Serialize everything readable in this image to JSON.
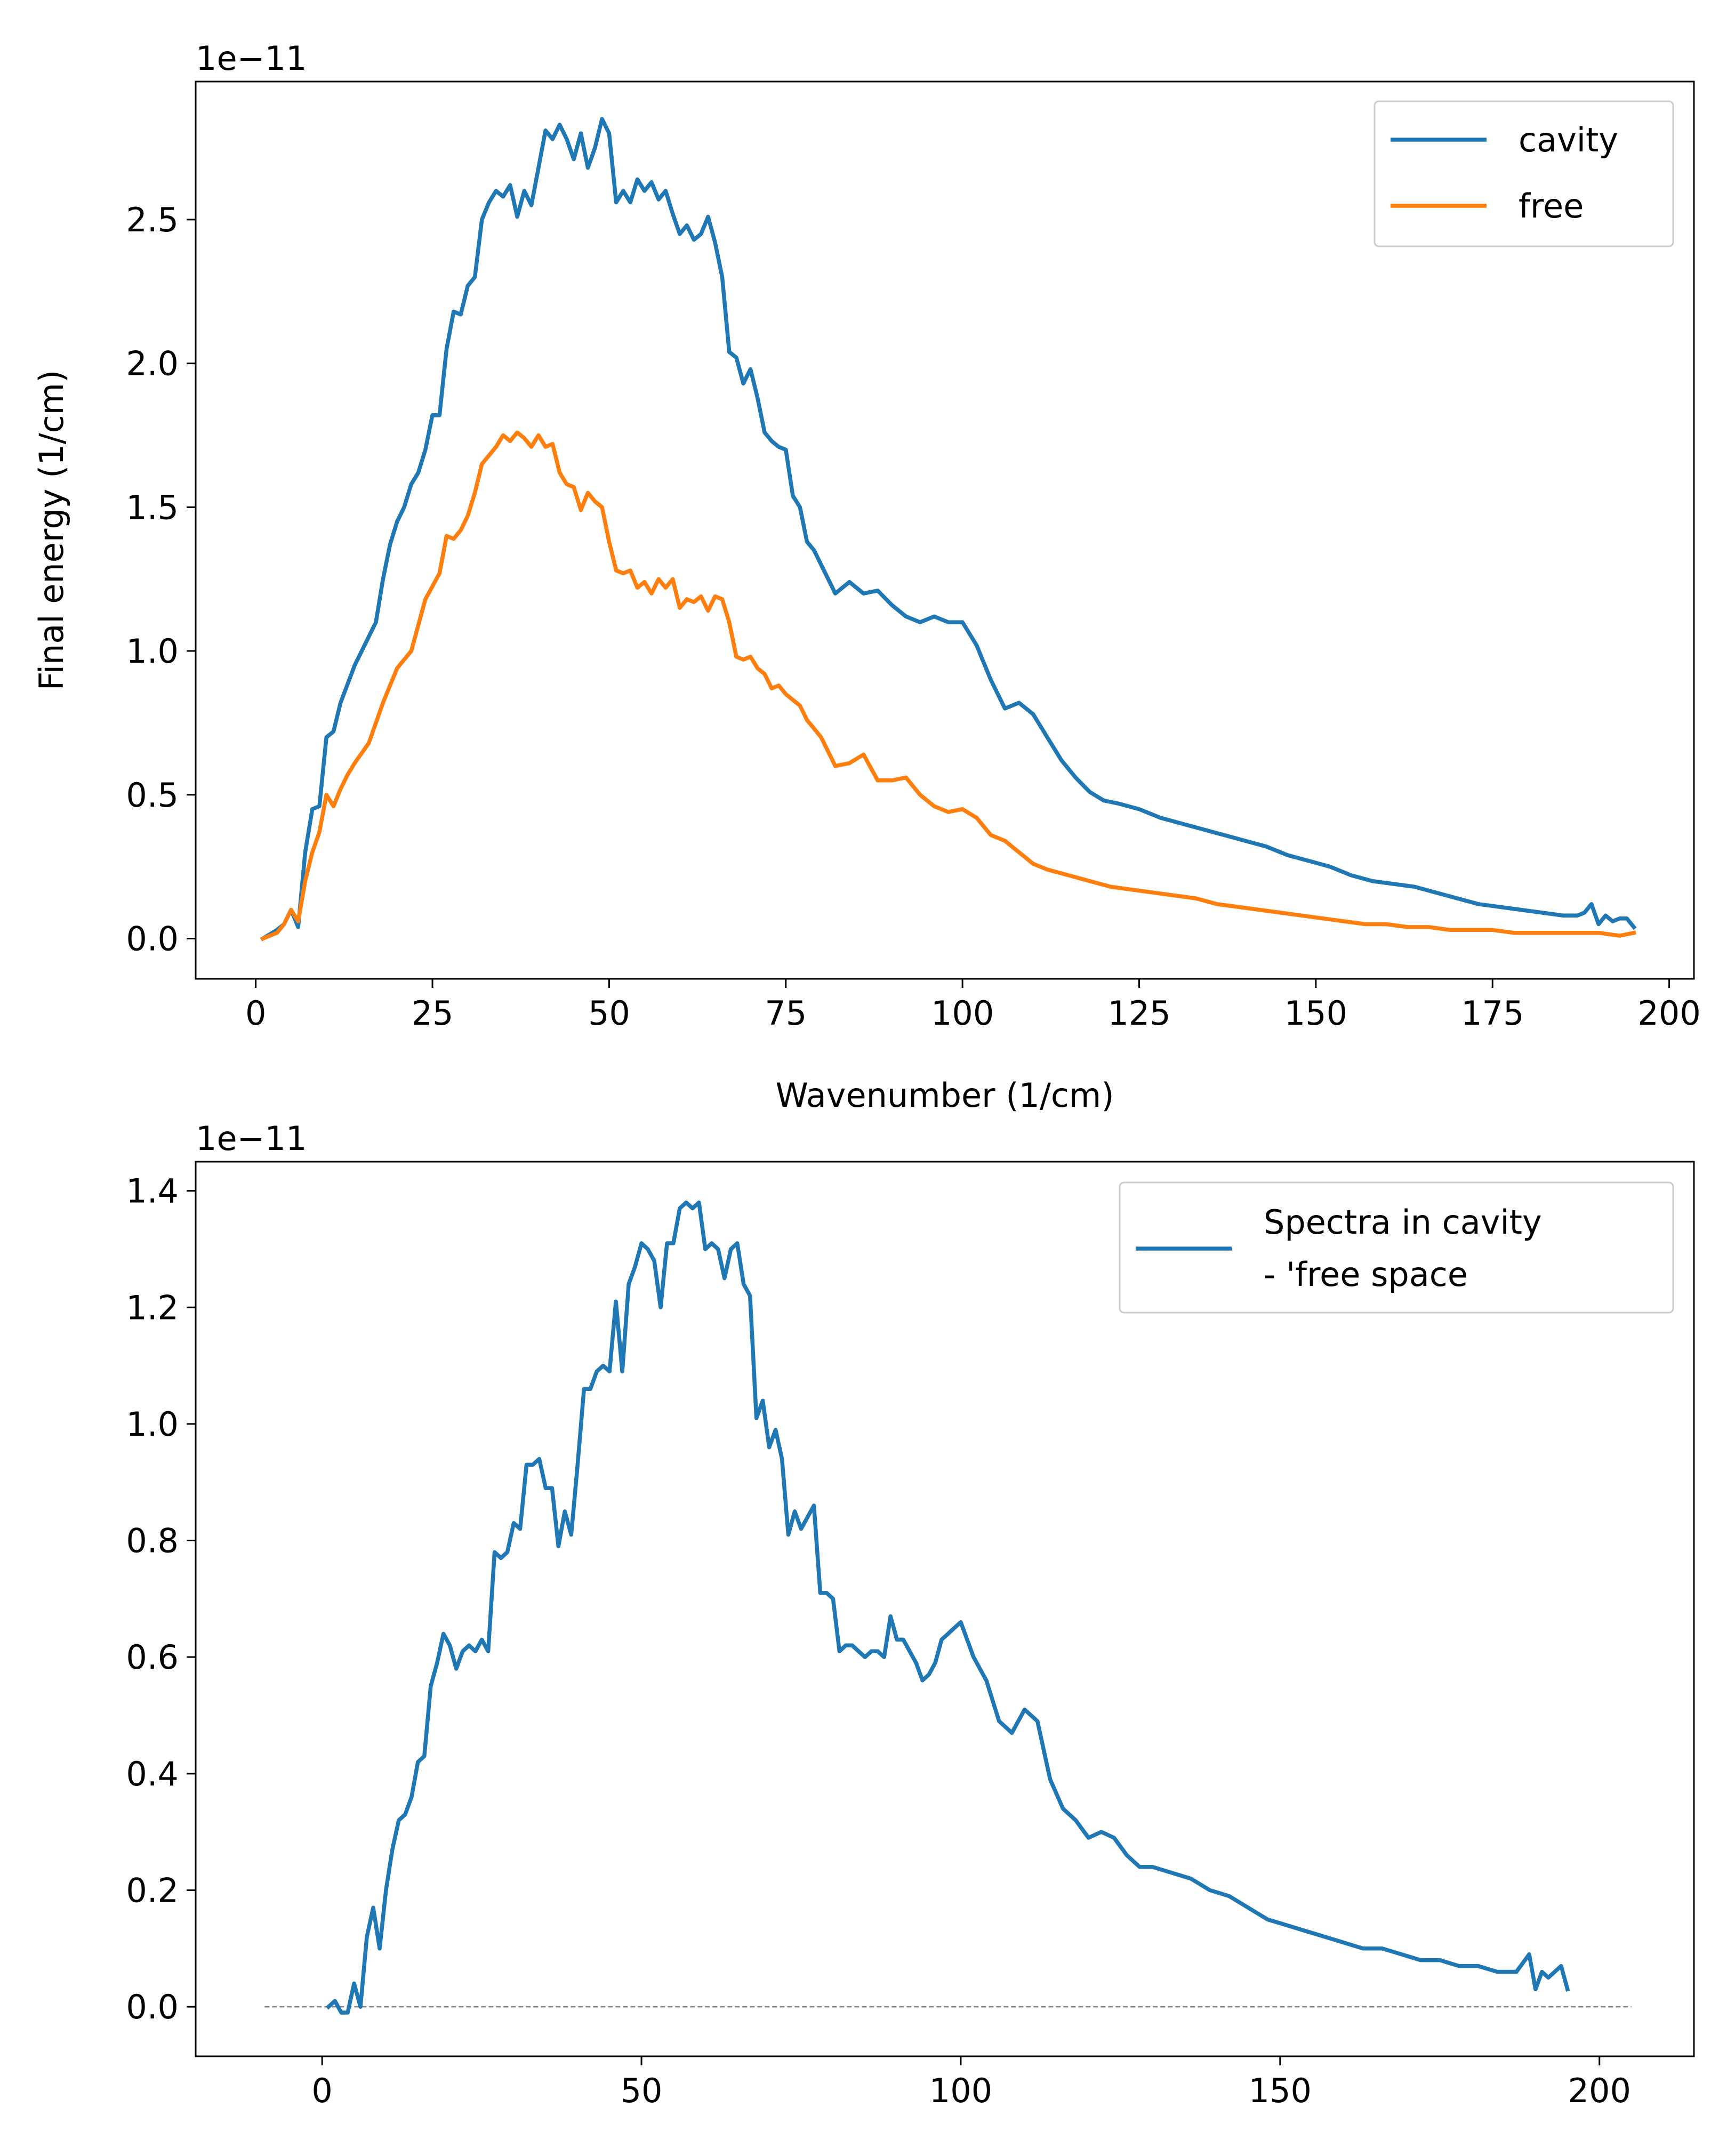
{
  "colors": {
    "cavity": "#1f77b4",
    "free": "#ff7f0e",
    "diff": "#1f77b4",
    "zeroline": "#808080"
  },
  "chart_data": [
    {
      "type": "line",
      "title": "",
      "xlabel": "Wavenumber (1/cm)",
      "ylabel": "Final energy (1/cm)",
      "offset_text": "1e−11",
      "xlim": [
        -8.5,
        203.5
      ],
      "ylim": [
        -0.14,
        2.98
      ],
      "xticks": [
        0,
        25,
        50,
        75,
        100,
        125,
        150,
        175,
        200
      ],
      "yticks": [
        0.0,
        0.5,
        1.0,
        1.5,
        2.0,
        2.5
      ],
      "xtick_labels": [
        "0",
        "25",
        "50",
        "75",
        "100",
        "125",
        "150",
        "175",
        "200"
      ],
      "ytick_labels": [
        "0.0",
        "0.5",
        "1.0",
        "1.5",
        "2.0",
        "2.5"
      ],
      "legend_position": "upper right",
      "grid": false,
      "series": [
        {
          "name": "cavity",
          "color": "#1f77b4",
          "x": [
            1,
            3,
            4,
            5,
            6,
            7,
            8,
            9,
            10,
            11,
            12,
            14,
            16,
            17,
            18,
            19,
            20,
            21,
            22,
            23,
            24,
            25,
            26,
            27,
            28,
            29,
            30,
            31,
            32,
            33,
            34,
            35,
            36,
            37,
            38,
            39,
            40,
            41,
            42,
            43,
            44,
            45,
            46,
            47,
            48,
            49,
            50,
            51,
            52,
            53,
            54,
            55,
            56,
            57,
            58,
            59,
            60,
            61,
            62,
            63,
            64,
            65,
            66,
            67,
            68,
            69,
            70,
            71,
            72,
            73,
            74,
            75,
            76,
            77,
            78,
            79,
            80,
            82,
            84,
            86,
            88,
            90,
            92,
            94,
            96,
            98,
            100,
            102,
            104,
            106,
            108,
            110,
            112,
            114,
            116,
            118,
            120,
            122,
            125,
            128,
            131,
            134,
            137,
            140,
            143,
            146,
            149,
            152,
            155,
            158,
            161,
            164,
            167,
            170,
            173,
            176,
            179,
            182,
            185,
            186,
            187,
            188,
            189,
            190,
            191,
            192,
            193,
            194,
            195
          ],
          "y": [
            0.0,
            0.03,
            0.05,
            0.1,
            0.04,
            0.3,
            0.45,
            0.46,
            0.7,
            0.72,
            0.82,
            0.95,
            1.05,
            1.1,
            1.25,
            1.37,
            1.45,
            1.5,
            1.58,
            1.62,
            1.7,
            1.82,
            1.82,
            2.05,
            2.18,
            2.17,
            2.27,
            2.3,
            2.5,
            2.56,
            2.6,
            2.58,
            2.62,
            2.51,
            2.6,
            2.55,
            2.68,
            2.81,
            2.78,
            2.83,
            2.78,
            2.71,
            2.8,
            2.68,
            2.75,
            2.85,
            2.8,
            2.56,
            2.6,
            2.56,
            2.64,
            2.6,
            2.63,
            2.57,
            2.6,
            2.52,
            2.45,
            2.48,
            2.43,
            2.45,
            2.51,
            2.42,
            2.3,
            2.04,
            2.02,
            1.93,
            1.98,
            1.88,
            1.76,
            1.73,
            1.71,
            1.7,
            1.54,
            1.5,
            1.38,
            1.35,
            1.3,
            1.2,
            1.24,
            1.2,
            1.21,
            1.16,
            1.12,
            1.1,
            1.12,
            1.1,
            1.1,
            1.02,
            0.9,
            0.8,
            0.82,
            0.78,
            0.7,
            0.62,
            0.56,
            0.51,
            0.48,
            0.47,
            0.45,
            0.42,
            0.4,
            0.38,
            0.36,
            0.34,
            0.32,
            0.29,
            0.27,
            0.25,
            0.22,
            0.2,
            0.19,
            0.18,
            0.16,
            0.14,
            0.12,
            0.11,
            0.1,
            0.09,
            0.08,
            0.08,
            0.08,
            0.09,
            0.12,
            0.05,
            0.08,
            0.06,
            0.07,
            0.07,
            0.04
          ]
        },
        {
          "name": "free",
          "color": "#ff7f0e",
          "x": [
            1,
            3,
            4,
            5,
            6,
            7,
            8,
            9,
            10,
            11,
            12,
            13,
            14,
            16,
            18,
            20,
            22,
            24,
            26,
            27,
            28,
            29,
            30,
            31,
            32,
            33,
            34,
            35,
            36,
            37,
            38,
            39,
            40,
            41,
            42,
            43,
            44,
            45,
            46,
            47,
            48,
            49,
            50,
            51,
            52,
            53,
            54,
            55,
            56,
            57,
            58,
            59,
            60,
            61,
            62,
            63,
            64,
            65,
            66,
            67,
            68,
            69,
            70,
            71,
            72,
            73,
            74,
            75,
            76,
            77,
            78,
            79,
            80,
            82,
            84,
            86,
            88,
            90,
            92,
            94,
            96,
            98,
            100,
            102,
            104,
            106,
            108,
            110,
            112,
            115,
            118,
            121,
            124,
            127,
            130,
            133,
            136,
            139,
            142,
            145,
            148,
            151,
            154,
            157,
            160,
            163,
            166,
            169,
            172,
            175,
            178,
            181,
            184,
            187,
            190,
            193,
            195
          ],
          "y": [
            0.0,
            0.02,
            0.05,
            0.1,
            0.06,
            0.2,
            0.3,
            0.37,
            0.5,
            0.46,
            0.52,
            0.57,
            0.61,
            0.68,
            0.82,
            0.94,
            1.0,
            1.18,
            1.27,
            1.4,
            1.39,
            1.42,
            1.47,
            1.55,
            1.65,
            1.68,
            1.71,
            1.75,
            1.73,
            1.76,
            1.74,
            1.71,
            1.75,
            1.71,
            1.72,
            1.62,
            1.58,
            1.57,
            1.49,
            1.55,
            1.52,
            1.5,
            1.38,
            1.28,
            1.27,
            1.28,
            1.22,
            1.24,
            1.2,
            1.25,
            1.22,
            1.25,
            1.15,
            1.18,
            1.17,
            1.19,
            1.14,
            1.19,
            1.18,
            1.1,
            0.98,
            0.97,
            0.98,
            0.94,
            0.92,
            0.87,
            0.88,
            0.85,
            0.83,
            0.81,
            0.76,
            0.73,
            0.7,
            0.6,
            0.61,
            0.64,
            0.55,
            0.55,
            0.56,
            0.5,
            0.46,
            0.44,
            0.45,
            0.42,
            0.36,
            0.34,
            0.3,
            0.26,
            0.24,
            0.22,
            0.2,
            0.18,
            0.17,
            0.16,
            0.15,
            0.14,
            0.12,
            0.11,
            0.1,
            0.09,
            0.08,
            0.07,
            0.06,
            0.05,
            0.05,
            0.04,
            0.04,
            0.03,
            0.03,
            0.03,
            0.02,
            0.02,
            0.02,
            0.02,
            0.02,
            0.01,
            0.02
          ]
        }
      ]
    },
    {
      "type": "line",
      "title": "",
      "xlabel": "",
      "ylabel": "",
      "offset_text": "1e−11",
      "xlim": [
        -19.8,
        214.8
      ],
      "ylim": [
        -0.085,
        1.45
      ],
      "xticks": [
        0,
        50,
        100,
        150,
        200
      ],
      "yticks": [
        0.0,
        0.2,
        0.4,
        0.6,
        0.8,
        1.0,
        1.2,
        1.4
      ],
      "xtick_labels": [
        "0",
        "50",
        "100",
        "150",
        "200"
      ],
      "ytick_labels": [
        "0.0",
        "0.2",
        "0.4",
        "0.6",
        "0.8",
        "1.0",
        "1.2",
        "1.4"
      ],
      "legend_position": "upper right",
      "grid": false,
      "zero_line": {
        "x": [
          -9,
          205
        ],
        "y": 0
      },
      "series": [
        {
          "name": "Spectra in cavity\n- 'free space",
          "label_lines": [
            "Spectra in cavity",
            "- 'free space"
          ],
          "color": "#1f77b4",
          "x": [
            1,
            2,
            3,
            4,
            5,
            6,
            7,
            8,
            9,
            10,
            11,
            12,
            13,
            14,
            15,
            16,
            17,
            18,
            19,
            20,
            21,
            22,
            23,
            24,
            25,
            26,
            27,
            28,
            29,
            30,
            31,
            32,
            33,
            34,
            35,
            36,
            37,
            38,
            39,
            40,
            41,
            42,
            43,
            44,
            45,
            46,
            47,
            48,
            49,
            50,
            51,
            52,
            53,
            54,
            55,
            56,
            57,
            58,
            59,
            60,
            61,
            62,
            63,
            64,
            65,
            66,
            67,
            68,
            69,
            70,
            71,
            72,
            73,
            74,
            75,
            76,
            77,
            78,
            79,
            80,
            81,
            82,
            83,
            84,
            85,
            86,
            87,
            88,
            89,
            90,
            91,
            92,
            93,
            94,
            95,
            96,
            97,
            98,
            99,
            100,
            102,
            104,
            106,
            108,
            110,
            112,
            114,
            116,
            118,
            120,
            122,
            124,
            126,
            128,
            130,
            133,
            136,
            139,
            142,
            145,
            148,
            151,
            154,
            157,
            160,
            163,
            166,
            169,
            172,
            175,
            178,
            181,
            184,
            187,
            189,
            190,
            191,
            192,
            193,
            194,
            195
          ],
          "y": [
            0.0,
            0.01,
            -0.01,
            -0.01,
            0.04,
            0.0,
            0.12,
            0.17,
            0.1,
            0.2,
            0.27,
            0.32,
            0.33,
            0.36,
            0.42,
            0.43,
            0.55,
            0.59,
            0.64,
            0.62,
            0.58,
            0.61,
            0.62,
            0.61,
            0.63,
            0.61,
            0.78,
            0.77,
            0.78,
            0.83,
            0.82,
            0.93,
            0.93,
            0.94,
            0.89,
            0.89,
            0.79,
            0.85,
            0.81,
            0.93,
            1.06,
            1.06,
            1.09,
            1.1,
            1.09,
            1.21,
            1.09,
            1.24,
            1.27,
            1.31,
            1.3,
            1.28,
            1.2,
            1.31,
            1.31,
            1.37,
            1.38,
            1.37,
            1.38,
            1.3,
            1.31,
            1.3,
            1.25,
            1.3,
            1.31,
            1.24,
            1.22,
            1.01,
            1.04,
            0.96,
            0.99,
            0.94,
            0.81,
            0.85,
            0.82,
            0.84,
            0.86,
            0.71,
            0.71,
            0.7,
            0.61,
            0.62,
            0.62,
            0.61,
            0.6,
            0.61,
            0.61,
            0.6,
            0.67,
            0.63,
            0.63,
            0.61,
            0.59,
            0.56,
            0.57,
            0.59,
            0.63,
            0.64,
            0.65,
            0.66,
            0.6,
            0.56,
            0.49,
            0.47,
            0.51,
            0.49,
            0.39,
            0.34,
            0.32,
            0.29,
            0.3,
            0.29,
            0.26,
            0.24,
            0.24,
            0.23,
            0.22,
            0.2,
            0.19,
            0.17,
            0.15,
            0.14,
            0.13,
            0.12,
            0.11,
            0.1,
            0.1,
            0.09,
            0.08,
            0.08,
            0.07,
            0.07,
            0.06,
            0.06,
            0.09,
            0.03,
            0.06,
            0.05,
            0.06,
            0.07,
            0.03
          ]
        }
      ]
    }
  ]
}
